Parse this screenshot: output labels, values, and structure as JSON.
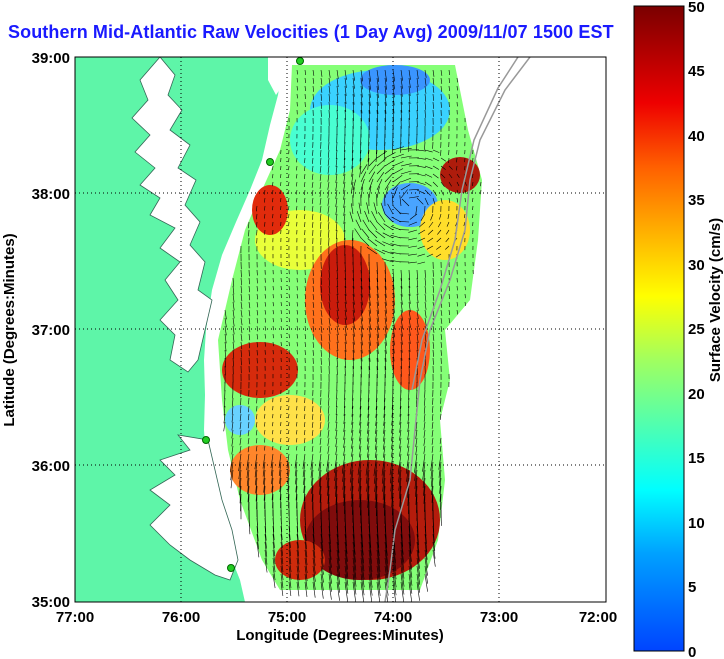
{
  "title": "Southern Mid-Atlantic Raw Velocities (1 Day Avg) 2009/11/07 1500 EST",
  "axes": {
    "xlabel": "Longitude (Degrees:Minutes)",
    "ylabel": "Latitude (Degrees:Minutes)",
    "x_ticks": [
      "77:00",
      "76:00",
      "75:00",
      "74:00",
      "73:00",
      "72:00"
    ],
    "y_ticks": [
      "39:00",
      "38:00",
      "37:00",
      "36:00",
      "35:00"
    ],
    "grid": "dotted"
  },
  "colorbar": {
    "label": "Surface Velocity (cm/s)",
    "ticks": [
      "0",
      "5",
      "10",
      "15",
      "20",
      "25",
      "30",
      "35",
      "40",
      "45",
      "50"
    ],
    "min": 0,
    "max": 50
  },
  "colors": {
    "land": "#5ef5a8",
    "water": "#ffffff",
    "title": "#1a1aff",
    "station": "#22cc22",
    "bathymetry": "#999999"
  }
}
